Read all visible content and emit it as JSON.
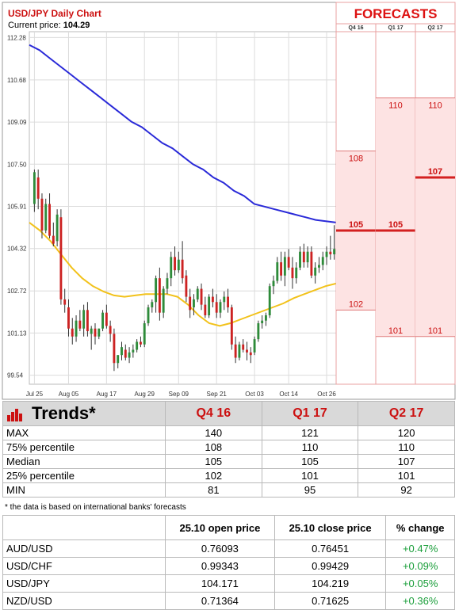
{
  "chart_data": {
    "type": "candlestick",
    "title": "USD/JPY Daily Chart",
    "price_label": "Current price:",
    "current_price": "104.29",
    "y_ticks": [
      "112.28",
      "110.68",
      "109.09",
      "107.50",
      "105.91",
      "104.32",
      "102.72",
      "101.13",
      "99.54"
    ],
    "y_tick_values": [
      112.28,
      110.68,
      109.09,
      107.5,
      105.91,
      104.32,
      102.72,
      101.13,
      99.54
    ],
    "x_ticks": [
      "Jul 25",
      "Aug 05",
      "Aug 17",
      "Aug 29",
      "Sep 09",
      "Sep 21",
      "Oct 03",
      "Oct 14",
      "Oct 26"
    ],
    "x_tick_index": [
      0,
      9,
      19,
      29,
      38,
      48,
      58,
      67,
      77
    ],
    "ylim": [
      99.2,
      112.5
    ],
    "grid": true,
    "colors": {
      "up": "#2e8b3a",
      "down": "#cc2222",
      "ma_long": "#2a2ad8",
      "ma_short": "#f2c21b"
    },
    "ohlc": [
      [
        106.0,
        107.3,
        105.7,
        107.2
      ],
      [
        107.0,
        107.3,
        105.8,
        106.2
      ],
      [
        106.2,
        106.4,
        104.7,
        105.0
      ],
      [
        105.0,
        106.2,
        104.9,
        106.0
      ],
      [
        106.0,
        106.4,
        104.7,
        104.8
      ],
      [
        104.8,
        105.3,
        104.4,
        104.5
      ],
      [
        104.6,
        105.8,
        104.4,
        105.6
      ],
      [
        105.5,
        105.8,
        102.2,
        102.4
      ],
      [
        102.4,
        102.8,
        101.9,
        102.2
      ],
      [
        102.1,
        102.4,
        101.0,
        101.3
      ],
      [
        101.3,
        101.7,
        100.7,
        101.0
      ],
      [
        101.0,
        101.8,
        100.8,
        101.6
      ],
      [
        101.6,
        102.0,
        101.2,
        101.3
      ],
      [
        101.3,
        102.2,
        101.0,
        102.0
      ],
      [
        102.0,
        102.3,
        101.0,
        101.2
      ],
      [
        101.1,
        101.4,
        100.5,
        101.3
      ],
      [
        101.3,
        101.5,
        100.7,
        101.0
      ],
      [
        101.0,
        101.3,
        100.9,
        101.3
      ],
      [
        101.3,
        102.0,
        101.2,
        101.9
      ],
      [
        101.9,
        102.2,
        101.3,
        101.4
      ],
      [
        101.4,
        101.6,
        100.8,
        101.1
      ],
      [
        101.1,
        101.3,
        99.7,
        100.0
      ],
      [
        100.0,
        100.3,
        99.8,
        100.3
      ],
      [
        100.3,
        100.8,
        100.1,
        100.6
      ],
      [
        100.5,
        100.7,
        100.1,
        100.2
      ],
      [
        100.2,
        100.6,
        100.0,
        100.4
      ],
      [
        100.4,
        100.7,
        100.2,
        100.5
      ],
      [
        100.5,
        100.9,
        100.4,
        100.8
      ],
      [
        100.8,
        101.0,
        100.6,
        100.7
      ],
      [
        100.7,
        101.6,
        100.6,
        101.5
      ],
      [
        101.5,
        102.2,
        101.4,
        102.1
      ],
      [
        102.1,
        102.4,
        101.9,
        102.3
      ],
      [
        102.3,
        103.3,
        101.9,
        103.2
      ],
      [
        103.2,
        103.6,
        101.6,
        101.9
      ],
      [
        101.9,
        102.9,
        101.7,
        102.8
      ],
      [
        102.8,
        103.4,
        102.6,
        103.2
      ],
      [
        103.2,
        104.2,
        102.9,
        104.0
      ],
      [
        104.0,
        104.4,
        103.3,
        103.5
      ],
      [
        103.5,
        104.2,
        103.4,
        103.9
      ],
      [
        103.9,
        104.6,
        103.0,
        103.2
      ],
      [
        103.3,
        103.5,
        102.3,
        102.5
      ],
      [
        102.5,
        102.8,
        101.7,
        102.0
      ],
      [
        102.1,
        102.6,
        101.8,
        102.4
      ],
      [
        102.4,
        102.9,
        102.3,
        102.8
      ],
      [
        102.8,
        103.0,
        102.0,
        102.2
      ],
      [
        102.2,
        102.5,
        101.7,
        101.8
      ],
      [
        101.8,
        102.6,
        101.7,
        102.5
      ],
      [
        102.5,
        102.8,
        102.1,
        102.3
      ],
      [
        102.3,
        102.6,
        101.7,
        101.9
      ],
      [
        101.9,
        102.4,
        101.7,
        102.3
      ],
      [
        102.3,
        102.7,
        102.0,
        102.5
      ],
      [
        102.5,
        102.8,
        101.9,
        102.1
      ],
      [
        102.1,
        102.2,
        100.5,
        100.7
      ],
      [
        100.7,
        101.0,
        100.0,
        100.2
      ],
      [
        100.2,
        100.8,
        100.1,
        100.7
      ],
      [
        100.7,
        100.9,
        100.4,
        100.5
      ],
      [
        100.5,
        100.8,
        100.1,
        100.4
      ],
      [
        100.4,
        100.6,
        100.0,
        100.3
      ],
      [
        100.4,
        101.0,
        100.3,
        100.9
      ],
      [
        100.9,
        101.6,
        100.8,
        101.5
      ],
      [
        101.5,
        101.8,
        101.3,
        101.6
      ],
      [
        101.6,
        101.9,
        101.4,
        101.8
      ],
      [
        101.8,
        103.0,
        101.7,
        102.9
      ],
      [
        102.9,
        103.3,
        102.6,
        103.1
      ],
      [
        103.1,
        104.0,
        103.0,
        103.8
      ],
      [
        103.8,
        104.2,
        103.1,
        103.3
      ],
      [
        103.3,
        104.2,
        102.9,
        104.0
      ],
      [
        104.0,
        104.3,
        103.5,
        103.6
      ],
      [
        103.6,
        104.0,
        102.8,
        103.2
      ],
      [
        103.2,
        103.8,
        103.0,
        103.6
      ],
      [
        103.6,
        104.4,
        103.5,
        104.2
      ],
      [
        104.2,
        104.5,
        103.6,
        103.8
      ],
      [
        103.8,
        104.4,
        103.6,
        104.2
      ],
      [
        104.2,
        104.4,
        103.2,
        103.3
      ],
      [
        103.3,
        103.8,
        103.0,
        103.6
      ],
      [
        103.6,
        104.0,
        103.4,
        103.7
      ],
      [
        103.7,
        104.2,
        103.5,
        104.0
      ],
      [
        104.0,
        104.4,
        103.7,
        104.2
      ],
      [
        104.2,
        104.8,
        103.9,
        104.1
      ],
      [
        104.1,
        105.2,
        103.9,
        104.3
      ]
    ],
    "ma_long": [
      112.0,
      111.8,
      111.5,
      111.2,
      110.9,
      110.6,
      110.3,
      110.0,
      109.7,
      109.4,
      109.1,
      108.9,
      108.6,
      108.3,
      108.1,
      107.8,
      107.5,
      107.3,
      107.0,
      106.8,
      106.5,
      106.3,
      106.0,
      105.9,
      105.8,
      105.7,
      105.6,
      105.5,
      105.4,
      105.35,
      105.3
    ],
    "ma_short": [
      105.3,
      105.0,
      104.6,
      104.1,
      103.6,
      103.2,
      102.9,
      102.7,
      102.55,
      102.5,
      102.55,
      102.6,
      102.6,
      102.6,
      102.5,
      102.2,
      101.8,
      101.5,
      101.4,
      101.5,
      101.65,
      101.8,
      101.95,
      102.1,
      102.25,
      102.45,
      102.6,
      102.75,
      102.9,
      103.0
    ],
    "forecasts": {
      "title": "FORECASTS",
      "columns": [
        "Q4 16",
        "Q1 17",
        "Q2 17"
      ],
      "max": [
        108,
        110,
        110
      ],
      "median": [
        105,
        105,
        107
      ],
      "min": [
        102,
        101,
        101
      ],
      "colors": {
        "band": "#fde3e3",
        "line": "#d42020",
        "title": "#dd1111"
      }
    }
  },
  "trends": {
    "title": "Trends*",
    "columns": [
      "Q4 16",
      "Q1 17",
      "Q2 17"
    ],
    "rows": [
      {
        "label": "MAX",
        "values": [
          "140",
          "121",
          "120"
        ]
      },
      {
        "label": "75% percentile",
        "values": [
          "108",
          "110",
          "110"
        ]
      },
      {
        "label": "Median",
        "values": [
          "105",
          "105",
          "107"
        ]
      },
      {
        "label": "25% percentile",
        "values": [
          "102",
          "101",
          "101"
        ]
      },
      {
        "label": "MIN",
        "values": [
          "81",
          "95",
          "92"
        ]
      }
    ],
    "footnote": "* the data is based on international banks' forecasts"
  },
  "prices": {
    "columns": [
      "25.10 open price",
      "25.10 close price",
      "% change"
    ],
    "rows": [
      {
        "pair": "AUD/USD",
        "open": "0.76093",
        "close": "0.76451",
        "change": "+0.47%"
      },
      {
        "pair": "USD/CHF",
        "open": "0.99343",
        "close": "0.99429",
        "change": "+0.09%"
      },
      {
        "pair": "USD/JPY",
        "open": "104.171",
        "close": "104.219",
        "change": "+0.05%"
      },
      {
        "pair": "NZD/USD",
        "open": "0.71364",
        "close": "0.71625",
        "change": "+0.36%"
      }
    ]
  }
}
